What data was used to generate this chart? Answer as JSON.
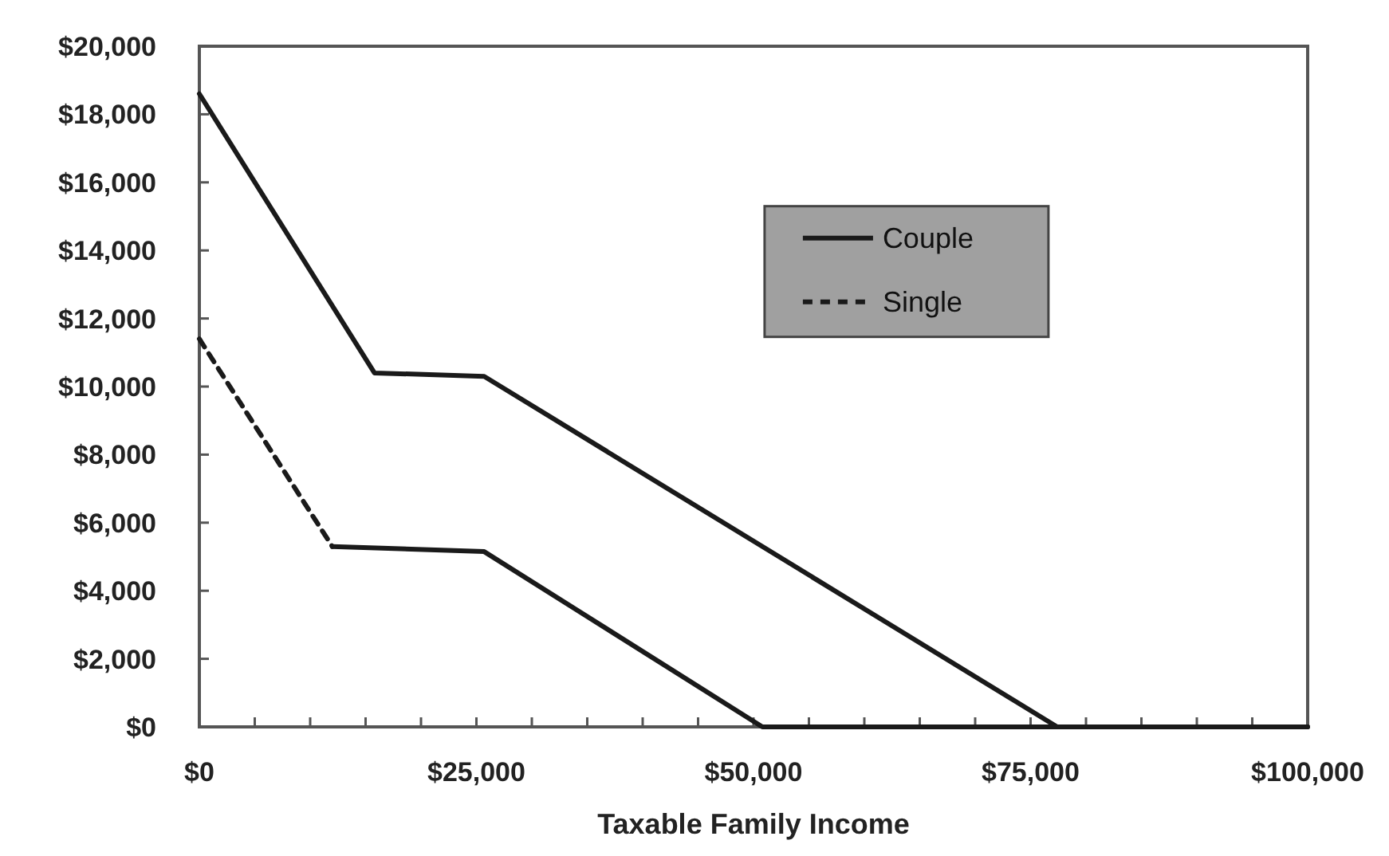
{
  "chart_data": {
    "type": "line",
    "xlabel": "Taxable Family Income",
    "xlim": [
      0,
      100000
    ],
    "ylim": [
      0,
      20000
    ],
    "xticks": [
      {
        "value": 0,
        "label": "$0"
      },
      {
        "value": 5000,
        "label": null
      },
      {
        "value": 10000,
        "label": null
      },
      {
        "value": 15000,
        "label": null
      },
      {
        "value": 20000,
        "label": null
      },
      {
        "value": 25000,
        "label": "$25,000"
      },
      {
        "value": 30000,
        "label": null
      },
      {
        "value": 35000,
        "label": null
      },
      {
        "value": 40000,
        "label": null
      },
      {
        "value": 45000,
        "label": null
      },
      {
        "value": 50000,
        "label": "$50,000"
      },
      {
        "value": 55000,
        "label": null
      },
      {
        "value": 60000,
        "label": null
      },
      {
        "value": 65000,
        "label": null
      },
      {
        "value": 70000,
        "label": null
      },
      {
        "value": 75000,
        "label": "$75,000"
      },
      {
        "value": 80000,
        "label": null
      },
      {
        "value": 85000,
        "label": null
      },
      {
        "value": 90000,
        "label": null
      },
      {
        "value": 95000,
        "label": null
      },
      {
        "value": 100000,
        "label": "$100,000"
      }
    ],
    "yticks": [
      {
        "value": 0,
        "label": "$0"
      },
      {
        "value": 2000,
        "label": "$2,000"
      },
      {
        "value": 4000,
        "label": "$4,000"
      },
      {
        "value": 6000,
        "label": "$6,000"
      },
      {
        "value": 8000,
        "label": "$8,000"
      },
      {
        "value": 10000,
        "label": "$10,000"
      },
      {
        "value": 12000,
        "label": "$12,000"
      },
      {
        "value": 14000,
        "label": "$14,000"
      },
      {
        "value": 16000,
        "label": "$16,000"
      },
      {
        "value": 18000,
        "label": "$18,000"
      },
      {
        "value": 20000,
        "label": "$20,000"
      }
    ],
    "grid": false,
    "legend": "top right",
    "marker": "none",
    "series": [
      {
        "name": "Couple",
        "color": "#1a1a1a",
        "line_style": "solid",
        "x": [
          0,
          15800,
          25700,
          77400,
          100000
        ],
        "values": [
          18600,
          10400,
          10300,
          0,
          0
        ]
      },
      {
        "name": "Single",
        "color": "#1a1a1a",
        "line_style": "dashed",
        "x": [
          0,
          12000
        ],
        "values": [
          11400,
          5300
        ]
      },
      {
        "color": "#1a1a1a",
        "line_style": "solid",
        "x": [
          12000,
          25700,
          50800,
          100000
        ],
        "values": [
          5300,
          5150,
          0,
          0
        ]
      }
    ]
  }
}
